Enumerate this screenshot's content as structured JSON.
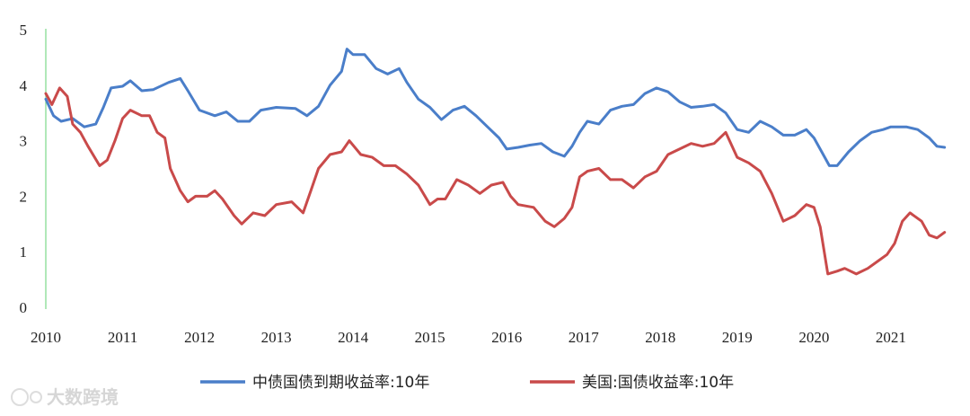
{
  "chart_data": {
    "type": "line",
    "title": "",
    "xlabel": "",
    "ylabel": "",
    "xlim": [
      2010,
      2021.75
    ],
    "ylim": [
      0,
      5
    ],
    "x_ticks": [
      "2010",
      "2011",
      "2012",
      "2013",
      "2014",
      "2015",
      "2016",
      "2017",
      "2018",
      "2019",
      "2020",
      "2021"
    ],
    "y_ticks": [
      "0",
      "1",
      "2",
      "3",
      "4",
      "5"
    ],
    "grid": false,
    "legend_position": "bottom",
    "series": [
      {
        "name": "中债国债到期收益率:10年",
        "color": "#4a7ec9",
        "points": [
          [
            2010.0,
            3.75
          ],
          [
            2010.1,
            3.45
          ],
          [
            2010.2,
            3.35
          ],
          [
            2010.35,
            3.4
          ],
          [
            2010.5,
            3.25
          ],
          [
            2010.65,
            3.3
          ],
          [
            2010.75,
            3.6
          ],
          [
            2010.85,
            3.95
          ],
          [
            2011.0,
            3.98
          ],
          [
            2011.1,
            4.08
          ],
          [
            2011.25,
            3.9
          ],
          [
            2011.4,
            3.92
          ],
          [
            2011.6,
            4.05
          ],
          [
            2011.75,
            4.12
          ],
          [
            2011.85,
            3.9
          ],
          [
            2012.0,
            3.55
          ],
          [
            2012.2,
            3.45
          ],
          [
            2012.35,
            3.52
          ],
          [
            2012.5,
            3.35
          ],
          [
            2012.65,
            3.35
          ],
          [
            2012.8,
            3.55
          ],
          [
            2013.0,
            3.6
          ],
          [
            2013.25,
            3.58
          ],
          [
            2013.4,
            3.45
          ],
          [
            2013.55,
            3.62
          ],
          [
            2013.7,
            4.0
          ],
          [
            2013.85,
            4.25
          ],
          [
            2013.92,
            4.65
          ],
          [
            2014.0,
            4.55
          ],
          [
            2014.15,
            4.55
          ],
          [
            2014.3,
            4.3
          ],
          [
            2014.45,
            4.2
          ],
          [
            2014.6,
            4.3
          ],
          [
            2014.7,
            4.05
          ],
          [
            2014.85,
            3.75
          ],
          [
            2015.0,
            3.6
          ],
          [
            2015.15,
            3.38
          ],
          [
            2015.3,
            3.55
          ],
          [
            2015.45,
            3.62
          ],
          [
            2015.6,
            3.45
          ],
          [
            2015.75,
            3.25
          ],
          [
            2015.9,
            3.05
          ],
          [
            2016.0,
            2.85
          ],
          [
            2016.15,
            2.88
          ],
          [
            2016.3,
            2.92
          ],
          [
            2016.45,
            2.95
          ],
          [
            2016.6,
            2.8
          ],
          [
            2016.75,
            2.72
          ],
          [
            2016.85,
            2.9
          ],
          [
            2016.95,
            3.15
          ],
          [
            2017.05,
            3.35
          ],
          [
            2017.2,
            3.3
          ],
          [
            2017.35,
            3.55
          ],
          [
            2017.5,
            3.62
          ],
          [
            2017.65,
            3.65
          ],
          [
            2017.8,
            3.85
          ],
          [
            2017.95,
            3.95
          ],
          [
            2018.1,
            3.88
          ],
          [
            2018.25,
            3.7
          ],
          [
            2018.4,
            3.6
          ],
          [
            2018.55,
            3.62
          ],
          [
            2018.7,
            3.65
          ],
          [
            2018.85,
            3.5
          ],
          [
            2019.0,
            3.2
          ],
          [
            2019.15,
            3.15
          ],
          [
            2019.3,
            3.35
          ],
          [
            2019.45,
            3.25
          ],
          [
            2019.6,
            3.1
          ],
          [
            2019.75,
            3.1
          ],
          [
            2019.9,
            3.2
          ],
          [
            2020.0,
            3.05
          ],
          [
            2020.1,
            2.8
          ],
          [
            2020.2,
            2.55
          ],
          [
            2020.3,
            2.55
          ],
          [
            2020.45,
            2.8
          ],
          [
            2020.6,
            3.0
          ],
          [
            2020.75,
            3.15
          ],
          [
            2020.9,
            3.2
          ],
          [
            2021.0,
            3.25
          ],
          [
            2021.2,
            3.25
          ],
          [
            2021.35,
            3.2
          ],
          [
            2021.5,
            3.05
          ],
          [
            2021.6,
            2.9
          ],
          [
            2021.7,
            2.88
          ]
        ]
      },
      {
        "name": "美国:国债收益率:10年",
        "color": "#c94a4a",
        "points": [
          [
            2010.0,
            3.85
          ],
          [
            2010.08,
            3.65
          ],
          [
            2010.18,
            3.95
          ],
          [
            2010.28,
            3.8
          ],
          [
            2010.35,
            3.3
          ],
          [
            2010.45,
            3.15
          ],
          [
            2010.55,
            2.9
          ],
          [
            2010.7,
            2.55
          ],
          [
            2010.8,
            2.65
          ],
          [
            2010.9,
            3.0
          ],
          [
            2011.0,
            3.4
          ],
          [
            2011.1,
            3.55
          ],
          [
            2011.25,
            3.45
          ],
          [
            2011.35,
            3.45
          ],
          [
            2011.45,
            3.15
          ],
          [
            2011.55,
            3.05
          ],
          [
            2011.62,
            2.5
          ],
          [
            2011.75,
            2.1
          ],
          [
            2011.85,
            1.9
          ],
          [
            2011.95,
            2.0
          ],
          [
            2012.1,
            2.0
          ],
          [
            2012.2,
            2.1
          ],
          [
            2012.3,
            1.95
          ],
          [
            2012.45,
            1.65
          ],
          [
            2012.55,
            1.5
          ],
          [
            2012.7,
            1.7
          ],
          [
            2012.85,
            1.65
          ],
          [
            2013.0,
            1.85
          ],
          [
            2013.2,
            1.9
          ],
          [
            2013.35,
            1.7
          ],
          [
            2013.45,
            2.1
          ],
          [
            2013.55,
            2.5
          ],
          [
            2013.7,
            2.75
          ],
          [
            2013.85,
            2.8
          ],
          [
            2013.95,
            3.0
          ],
          [
            2014.1,
            2.75
          ],
          [
            2014.25,
            2.7
          ],
          [
            2014.4,
            2.55
          ],
          [
            2014.55,
            2.55
          ],
          [
            2014.7,
            2.4
          ],
          [
            2014.85,
            2.2
          ],
          [
            2015.0,
            1.85
          ],
          [
            2015.1,
            1.95
          ],
          [
            2015.2,
            1.95
          ],
          [
            2015.35,
            2.3
          ],
          [
            2015.5,
            2.2
          ],
          [
            2015.65,
            2.05
          ],
          [
            2015.8,
            2.2
          ],
          [
            2015.95,
            2.25
          ],
          [
            2016.05,
            2.0
          ],
          [
            2016.15,
            1.85
          ],
          [
            2016.35,
            1.8
          ],
          [
            2016.5,
            1.55
          ],
          [
            2016.62,
            1.45
          ],
          [
            2016.75,
            1.6
          ],
          [
            2016.85,
            1.8
          ],
          [
            2016.95,
            2.35
          ],
          [
            2017.05,
            2.45
          ],
          [
            2017.2,
            2.5
          ],
          [
            2017.35,
            2.3
          ],
          [
            2017.5,
            2.3
          ],
          [
            2017.65,
            2.15
          ],
          [
            2017.8,
            2.35
          ],
          [
            2017.95,
            2.45
          ],
          [
            2018.1,
            2.75
          ],
          [
            2018.25,
            2.85
          ],
          [
            2018.4,
            2.95
          ],
          [
            2018.55,
            2.9
          ],
          [
            2018.7,
            2.95
          ],
          [
            2018.85,
            3.15
          ],
          [
            2019.0,
            2.7
          ],
          [
            2019.15,
            2.6
          ],
          [
            2019.3,
            2.45
          ],
          [
            2019.45,
            2.05
          ],
          [
            2019.6,
            1.55
          ],
          [
            2019.75,
            1.65
          ],
          [
            2019.9,
            1.85
          ],
          [
            2020.0,
            1.8
          ],
          [
            2020.08,
            1.45
          ],
          [
            2020.18,
            0.6
          ],
          [
            2020.3,
            0.65
          ],
          [
            2020.4,
            0.7
          ],
          [
            2020.55,
            0.6
          ],
          [
            2020.7,
            0.7
          ],
          [
            2020.85,
            0.85
          ],
          [
            2020.95,
            0.95
          ],
          [
            2021.05,
            1.15
          ],
          [
            2021.15,
            1.55
          ],
          [
            2021.25,
            1.7
          ],
          [
            2021.4,
            1.55
          ],
          [
            2021.5,
            1.3
          ],
          [
            2021.6,
            1.25
          ],
          [
            2021.7,
            1.35
          ]
        ]
      }
    ]
  }
}
